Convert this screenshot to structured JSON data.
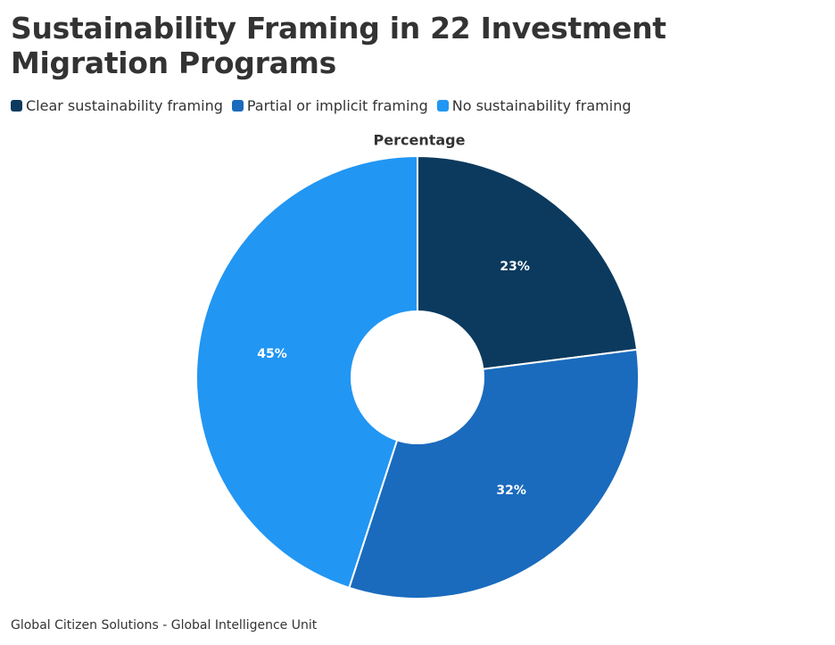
{
  "chart_data": {
    "type": "donut",
    "title": "Sustainability Framing in 22 Investment Migration Programs",
    "subtitle": "Percentage",
    "categories": [
      "Clear sustainability framing",
      "Partial or implicit framing",
      "No sustainability framing"
    ],
    "values": [
      23,
      32,
      45
    ],
    "value_labels": [
      "23%",
      "32%",
      "45%"
    ],
    "colors": [
      "#0b3a5e",
      "#1a6bbd",
      "#2196f3"
    ],
    "legend": "top-left",
    "source": "Global Citizen Solutions - Global Intelligence Unit"
  }
}
